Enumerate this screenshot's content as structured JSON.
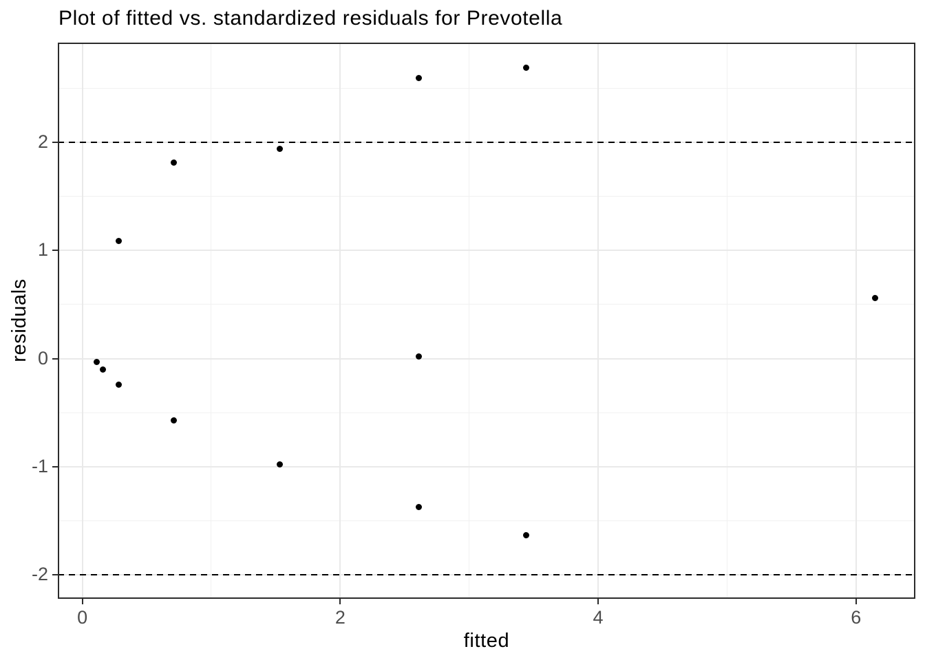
{
  "page": {
    "title": "Plot of fitted vs. standardized residuals for Prevotella"
  },
  "chart_data": {
    "type": "scatter",
    "title": "Plot of fitted vs. standardized residuals for Prevotella",
    "xlabel": "fitted",
    "ylabel": "residuals",
    "xlim": [
      -0.19,
      6.46
    ],
    "ylim": [
      -2.22,
      2.92
    ],
    "x_major_ticks": [
      0,
      2,
      4,
      6
    ],
    "x_minor_ticks": [
      1,
      3,
      5
    ],
    "y_major_ticks": [
      -2,
      -1,
      0,
      1,
      2
    ],
    "y_minor_ticks": [
      -1.5,
      -0.5,
      0.5,
      1.5,
      2.5
    ],
    "grid": "major and minor, light gray, white panel with dark border",
    "legend": "none",
    "reference_lines": [
      {
        "y": 2,
        "style": "dashed",
        "color": "#000000"
      },
      {
        "y": -2,
        "style": "dashed",
        "color": "#000000"
      }
    ],
    "series": [
      {
        "name": "standardized residuals",
        "marker": "filled-circle",
        "color": "#000000",
        "points": [
          {
            "x": 0.11,
            "y": -0.03
          },
          {
            "x": 0.16,
            "y": -0.1
          },
          {
            "x": 0.28,
            "y": -0.24
          },
          {
            "x": 0.28,
            "y": 1.09
          },
          {
            "x": 0.71,
            "y": 1.81
          },
          {
            "x": 0.71,
            "y": -0.57
          },
          {
            "x": 1.53,
            "y": 1.94
          },
          {
            "x": 1.53,
            "y": -0.98
          },
          {
            "x": 2.61,
            "y": 2.59
          },
          {
            "x": 2.61,
            "y": 0.02
          },
          {
            "x": 2.61,
            "y": -1.37
          },
          {
            "x": 3.44,
            "y": 2.69
          },
          {
            "x": 3.44,
            "y": -1.63
          },
          {
            "x": 6.15,
            "y": 0.56
          }
        ]
      }
    ],
    "colors": {
      "point": "#000000",
      "grid_major": "#e9e9e9",
      "grid_minor": "#f1f1f1",
      "panel_border": "#2b2b2b",
      "tick_label": "#4d4d4d",
      "text": "#000000",
      "background": "#ffffff"
    }
  }
}
